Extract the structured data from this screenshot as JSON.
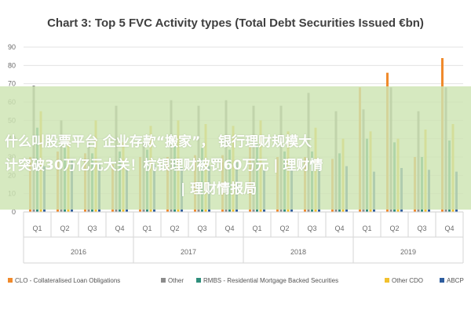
{
  "overlay": {
    "line1": "什么叫股票平台 企业存款“搬家”， 银行理财规模大",
    "line2": "计突破30万亿元大关！杭银理财被罚60万元 | 理财情",
    "line3": "| 理财情报局"
  },
  "chart_data": {
    "type": "bar",
    "title": "Chart 3: Top 5 FVC Activity types (Total Debt Securities Issued €bn)",
    "ylim": [
      0,
      90
    ],
    "yticks": [
      0,
      10,
      20,
      30,
      40,
      50,
      60,
      70,
      80,
      90
    ],
    "categories": [
      "Q1",
      "Q2",
      "Q3",
      "Q4",
      "Q1",
      "Q2",
      "Q3",
      "Q4",
      "Q1",
      "Q2",
      "Q3",
      "Q4",
      "Q1",
      "Q2",
      "Q3",
      "Q4"
    ],
    "years": [
      "2016",
      "2017",
      "2018",
      "2019"
    ],
    "series": [
      {
        "name": "CLO - Collateralised Loan Obligations",
        "color": "#f08a2c",
        "values": [
          30,
          33,
          32,
          26,
          30,
          30,
          31,
          31,
          36,
          30,
          30,
          29,
          68,
          76,
          30,
          84
        ]
      },
      {
        "name": "Other",
        "color": "#8c8c8c",
        "values": [
          69,
          50,
          40,
          58,
          38,
          61,
          58,
          61,
          58,
          58,
          65,
          55,
          56,
          68,
          55,
          68
        ]
      },
      {
        "name": "RMBS - Residential Mortgage Backed Securities",
        "color": "#2f8f7c",
        "values": [
          46,
          35,
          32,
          33,
          34,
          36,
          35,
          34,
          37,
          33,
          33,
          32,
          40,
          38,
          30,
          39
        ]
      },
      {
        "name": "Other CDO",
        "color": "#f2c12e",
        "values": [
          55,
          40,
          50,
          38,
          47,
          50,
          48,
          47,
          50,
          44,
          46,
          40,
          44,
          40,
          45,
          48
        ]
      },
      {
        "name": "ABCP",
        "color": "#2e5d9e",
        "values": [
          25,
          28,
          27,
          24,
          26,
          24,
          25,
          27,
          23,
          25,
          26,
          25,
          22,
          24,
          23,
          22
        ]
      }
    ],
    "legend_position": "bottom",
    "grid": true
  }
}
